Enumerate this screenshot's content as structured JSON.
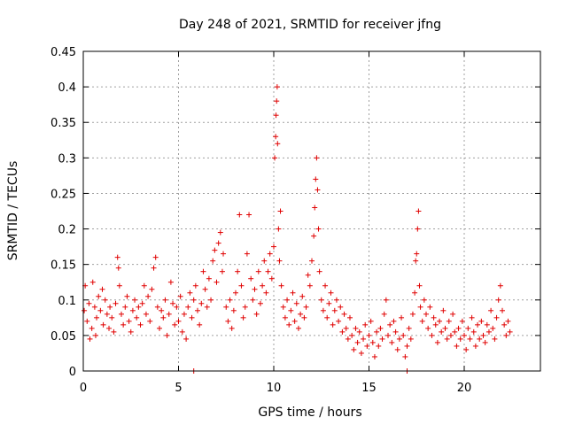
{
  "chart_data": {
    "type": "scatter",
    "title": "Day 248 of 2021, SRMTID for receiver jfng",
    "xlabel": "GPS time / hours",
    "ylabel": "SRMTID / TECUs",
    "xlim": [
      0,
      24
    ],
    "ylim": [
      0,
      0.45
    ],
    "xticks": [
      0,
      5,
      10,
      15,
      20
    ],
    "yticks": [
      0,
      0.05,
      0.1,
      0.15,
      0.2,
      0.25,
      0.3,
      0.35,
      0.4,
      0.45
    ],
    "grid": true,
    "marker": "+",
    "color": "#e00000",
    "series": [
      {
        "name": "jfng",
        "points": [
          [
            0.05,
            0.085
          ],
          [
            0.1,
            0.12
          ],
          [
            0.2,
            0.07
          ],
          [
            0.3,
            0.095
          ],
          [
            0.35,
            0.045
          ],
          [
            0.45,
            0.06
          ],
          [
            0.5,
            0.125
          ],
          [
            0.6,
            0.09
          ],
          [
            0.65,
            0.05
          ],
          [
            0.7,
            0.075
          ],
          [
            0.8,
            0.105
          ],
          [
            0.9,
            0.085
          ],
          [
            1.0,
            0.115
          ],
          [
            1.05,
            0.065
          ],
          [
            1.15,
            0.1
          ],
          [
            1.25,
            0.08
          ],
          [
            1.35,
            0.06
          ],
          [
            1.4,
            0.09
          ],
          [
            1.5,
            0.075
          ],
          [
            1.6,
            0.055
          ],
          [
            1.7,
            0.095
          ],
          [
            1.8,
            0.16
          ],
          [
            1.85,
            0.145
          ],
          [
            1.9,
            0.12
          ],
          [
            2.0,
            0.08
          ],
          [
            2.1,
            0.065
          ],
          [
            2.2,
            0.09
          ],
          [
            2.3,
            0.105
          ],
          [
            2.4,
            0.07
          ],
          [
            2.5,
            0.055
          ],
          [
            2.6,
            0.085
          ],
          [
            2.7,
            0.1
          ],
          [
            2.8,
            0.075
          ],
          [
            2.9,
            0.09
          ],
          [
            3.0,
            0.065
          ],
          [
            3.1,
            0.095
          ],
          [
            3.2,
            0.12
          ],
          [
            3.3,
            0.08
          ],
          [
            3.4,
            0.105
          ],
          [
            3.5,
            0.07
          ],
          [
            3.6,
            0.115
          ],
          [
            3.7,
            0.145
          ],
          [
            3.8,
            0.16
          ],
          [
            3.9,
            0.09
          ],
          [
            4.0,
            0.06
          ],
          [
            4.1,
            0.085
          ],
          [
            4.2,
            0.075
          ],
          [
            4.3,
            0.1
          ],
          [
            4.4,
            0.05
          ],
          [
            4.5,
            0.08
          ],
          [
            4.6,
            0.125
          ],
          [
            4.7,
            0.095
          ],
          [
            4.8,
            0.065
          ],
          [
            4.9,
            0.09
          ],
          [
            5.0,
            0.07
          ],
          [
            5.1,
            0.105
          ],
          [
            5.2,
            0.055
          ],
          [
            5.3,
            0.08
          ],
          [
            5.4,
            0.045
          ],
          [
            5.5,
            0.09
          ],
          [
            5.6,
            0.11
          ],
          [
            5.7,
            0.075
          ],
          [
            5.8,
            0.1
          ],
          [
            5.9,
            0.12
          ],
          [
            6.0,
            0.085
          ],
          [
            6.1,
            0.065
          ],
          [
            6.2,
            0.095
          ],
          [
            6.3,
            0.14
          ],
          [
            6.4,
            0.115
          ],
          [
            6.5,
            0.09
          ],
          [
            6.6,
            0.13
          ],
          [
            6.7,
            0.1
          ],
          [
            6.8,
            0.155
          ],
          [
            6.9,
            0.17
          ],
          [
            7.0,
            0.125
          ],
          [
            7.1,
            0.18
          ],
          [
            7.2,
            0.195
          ],
          [
            7.3,
            0.14
          ],
          [
            7.35,
            0.165
          ],
          [
            7.5,
            0.09
          ],
          [
            7.6,
            0.07
          ],
          [
            7.7,
            0.1
          ],
          [
            7.8,
            0.06
          ],
          [
            7.9,
            0.085
          ],
          [
            8.0,
            0.11
          ],
          [
            8.1,
            0.14
          ],
          [
            8.2,
            0.22
          ],
          [
            8.3,
            0.12
          ],
          [
            8.4,
            0.075
          ],
          [
            8.5,
            0.09
          ],
          [
            8.6,
            0.165
          ],
          [
            8.7,
            0.22
          ],
          [
            8.8,
            0.13
          ],
          [
            8.9,
            0.1
          ],
          [
            9.0,
            0.115
          ],
          [
            9.1,
            0.08
          ],
          [
            9.2,
            0.14
          ],
          [
            9.3,
            0.095
          ],
          [
            9.4,
            0.12
          ],
          [
            9.5,
            0.155
          ],
          [
            9.6,
            0.11
          ],
          [
            9.7,
            0.14
          ],
          [
            9.8,
            0.165
          ],
          [
            9.9,
            0.13
          ],
          [
            10.0,
            0.175
          ],
          [
            10.05,
            0.3
          ],
          [
            10.1,
            0.33
          ],
          [
            10.12,
            0.36
          ],
          [
            10.15,
            0.38
          ],
          [
            10.18,
            0.4
          ],
          [
            10.2,
            0.32
          ],
          [
            10.25,
            0.2
          ],
          [
            10.3,
            0.155
          ],
          [
            10.35,
            0.225
          ],
          [
            10.4,
            0.12
          ],
          [
            10.5,
            0.09
          ],
          [
            10.6,
            0.075
          ],
          [
            10.7,
            0.1
          ],
          [
            10.8,
            0.065
          ],
          [
            10.9,
            0.085
          ],
          [
            11.0,
            0.11
          ],
          [
            11.1,
            0.07
          ],
          [
            11.2,
            0.095
          ],
          [
            11.3,
            0.06
          ],
          [
            11.4,
            0.08
          ],
          [
            11.5,
            0.105
          ],
          [
            11.6,
            0.075
          ],
          [
            11.7,
            0.09
          ],
          [
            11.8,
            0.135
          ],
          [
            11.9,
            0.12
          ],
          [
            12.0,
            0.155
          ],
          [
            12.1,
            0.19
          ],
          [
            12.15,
            0.23
          ],
          [
            12.2,
            0.27
          ],
          [
            12.25,
            0.3
          ],
          [
            12.3,
            0.255
          ],
          [
            12.35,
            0.2
          ],
          [
            12.4,
            0.14
          ],
          [
            12.5,
            0.1
          ],
          [
            12.6,
            0.085
          ],
          [
            12.7,
            0.12
          ],
          [
            12.8,
            0.075
          ],
          [
            12.9,
            0.095
          ],
          [
            13.0,
            0.11
          ],
          [
            13.1,
            0.065
          ],
          [
            13.2,
            0.085
          ],
          [
            13.3,
            0.1
          ],
          [
            13.4,
            0.07
          ],
          [
            13.5,
            0.09
          ],
          [
            13.6,
            0.055
          ],
          [
            13.7,
            0.08
          ],
          [
            13.8,
            0.06
          ],
          [
            13.9,
            0.045
          ],
          [
            14.0,
            0.075
          ],
          [
            14.1,
            0.05
          ],
          [
            14.2,
            0.03
          ],
          [
            14.3,
            0.06
          ],
          [
            14.4,
            0.04
          ],
          [
            14.5,
            0.055
          ],
          [
            14.6,
            0.025
          ],
          [
            14.7,
            0.045
          ],
          [
            14.8,
            0.065
          ],
          [
            14.9,
            0.035
          ],
          [
            15.0,
            0.05
          ],
          [
            15.1,
            0.07
          ],
          [
            15.2,
            0.04
          ],
          [
            15.3,
            0.02
          ],
          [
            15.4,
            0.055
          ],
          [
            15.5,
            0.035
          ],
          [
            15.6,
            0.06
          ],
          [
            15.7,
            0.045
          ],
          [
            15.8,
            0.08
          ],
          [
            15.9,
            0.1
          ],
          [
            16.0,
            0.05
          ],
          [
            16.1,
            0.065
          ],
          [
            16.2,
            0.04
          ],
          [
            16.3,
            0.07
          ],
          [
            16.4,
            0.055
          ],
          [
            16.5,
            0.03
          ],
          [
            16.6,
            0.045
          ],
          [
            16.7,
            0.075
          ],
          [
            16.8,
            0.05
          ],
          [
            16.9,
            0.02
          ],
          [
            17.0,
            0.035
          ],
          [
            17.1,
            0.06
          ],
          [
            17.2,
            0.045
          ],
          [
            17.3,
            0.08
          ],
          [
            17.4,
            0.11
          ],
          [
            17.45,
            0.155
          ],
          [
            17.5,
            0.165
          ],
          [
            17.55,
            0.2
          ],
          [
            17.6,
            0.225
          ],
          [
            17.65,
            0.12
          ],
          [
            17.7,
            0.09
          ],
          [
            17.8,
            0.07
          ],
          [
            17.9,
            0.1
          ],
          [
            18.0,
            0.08
          ],
          [
            18.1,
            0.06
          ],
          [
            18.2,
            0.09
          ],
          [
            18.3,
            0.05
          ],
          [
            18.4,
            0.075
          ],
          [
            18.5,
            0.065
          ],
          [
            18.6,
            0.04
          ],
          [
            18.7,
            0.07
          ],
          [
            18.8,
            0.055
          ],
          [
            18.9,
            0.085
          ],
          [
            19.0,
            0.06
          ],
          [
            19.1,
            0.045
          ],
          [
            19.2,
            0.07
          ],
          [
            19.3,
            0.05
          ],
          [
            19.4,
            0.08
          ],
          [
            19.5,
            0.055
          ],
          [
            19.6,
            0.035
          ],
          [
            19.7,
            0.06
          ],
          [
            19.8,
            0.045
          ],
          [
            19.9,
            0.07
          ],
          [
            20.0,
            0.05
          ],
          [
            20.1,
            0.03
          ],
          [
            20.2,
            0.06
          ],
          [
            20.3,
            0.045
          ],
          [
            20.4,
            0.075
          ],
          [
            20.5,
            0.055
          ],
          [
            20.6,
            0.035
          ],
          [
            20.7,
            0.065
          ],
          [
            20.8,
            0.045
          ],
          [
            20.9,
            0.07
          ],
          [
            21.0,
            0.05
          ],
          [
            21.1,
            0.04
          ],
          [
            21.2,
            0.065
          ],
          [
            21.3,
            0.055
          ],
          [
            21.4,
            0.085
          ],
          [
            21.5,
            0.06
          ],
          [
            21.6,
            0.045
          ],
          [
            21.7,
            0.075
          ],
          [
            21.8,
            0.1
          ],
          [
            21.9,
            0.12
          ],
          [
            22.0,
            0.085
          ],
          [
            22.1,
            0.065
          ],
          [
            22.2,
            0.05
          ],
          [
            22.3,
            0.07
          ],
          [
            22.4,
            0.055
          ],
          [
            5.8,
            0.0
          ],
          [
            17.0,
            0.0
          ]
        ]
      }
    ]
  }
}
